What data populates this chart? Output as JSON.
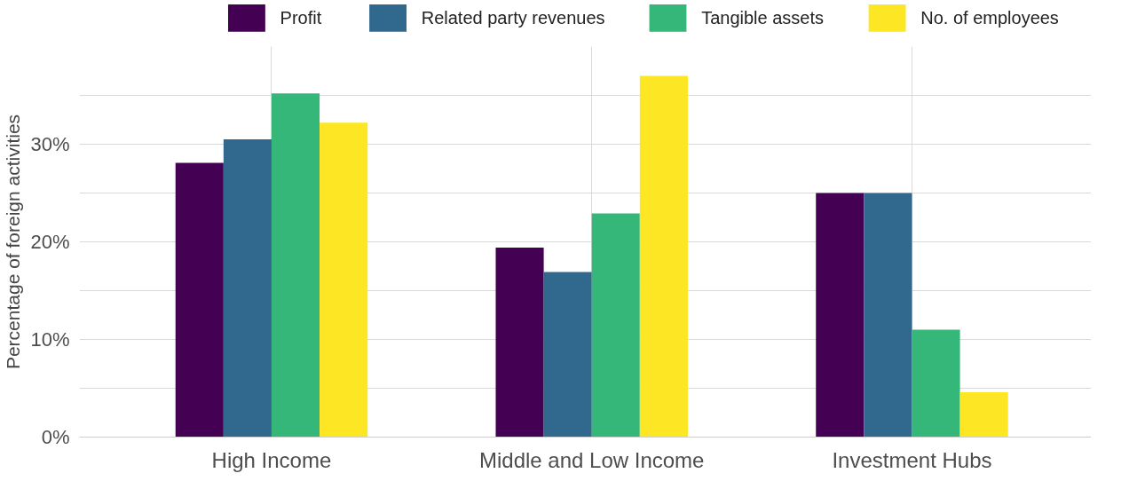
{
  "chart_data": {
    "type": "bar",
    "ylabel": "Percentage of foreign activities",
    "categories": [
      "High Income",
      "Middle and Low Income",
      "Investment Hubs"
    ],
    "series": [
      {
        "name": "Profit",
        "color": "#440154",
        "values": [
          28.1,
          19.4,
          25.0
        ]
      },
      {
        "name": "Related party revenues",
        "color": "#31688e",
        "values": [
          30.5,
          16.9,
          25.0
        ]
      },
      {
        "name": "Tangible assets",
        "color": "#35b779",
        "values": [
          35.2,
          22.9,
          11.0
        ]
      },
      {
        "name": "No. of employees",
        "color": "#fde725",
        "values": [
          32.2,
          37.0,
          4.6
        ]
      }
    ],
    "ylim": [
      0,
      40
    ],
    "yticks": [
      {
        "value": 0,
        "label": "0%"
      },
      {
        "value": 5,
        "label": null
      },
      {
        "value": 10,
        "label": "10%"
      },
      {
        "value": 15,
        "label": null
      },
      {
        "value": 20,
        "label": "20%"
      },
      {
        "value": 25,
        "label": null
      },
      {
        "value": 30,
        "label": "30%"
      },
      {
        "value": 35,
        "label": null
      }
    ],
    "grid": true,
    "legend": "top"
  }
}
